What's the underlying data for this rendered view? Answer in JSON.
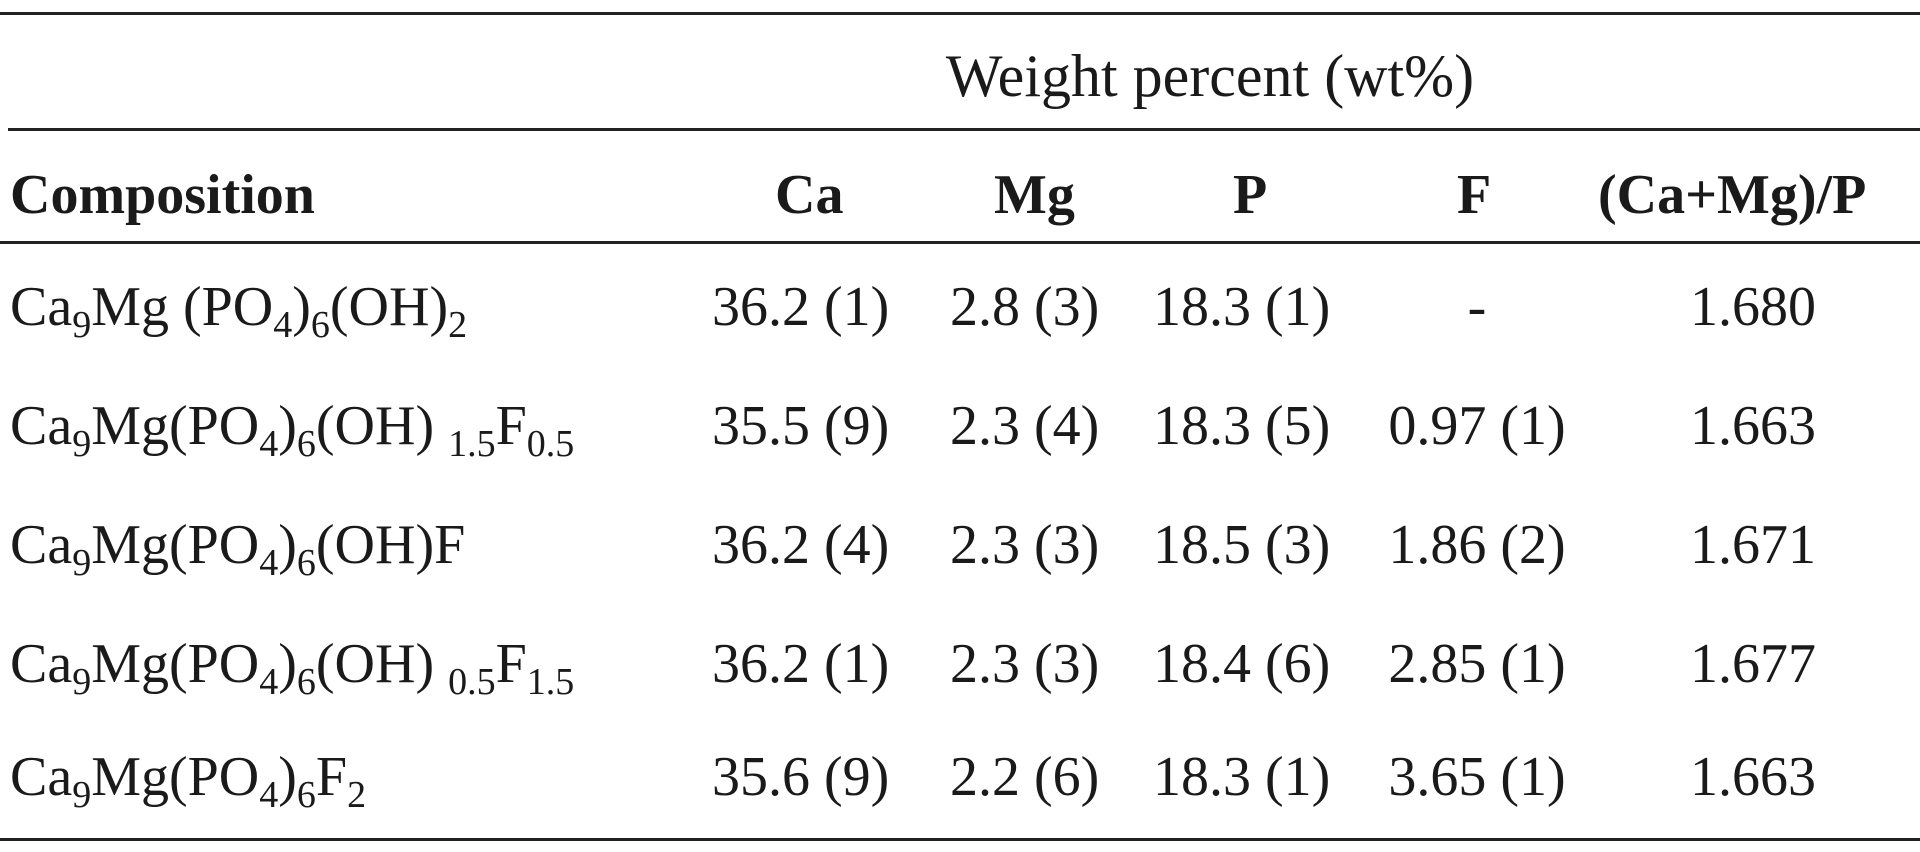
{
  "table": {
    "spanner": "Weight percent (wt%)",
    "headers": {
      "composition": "Composition",
      "ca": "Ca",
      "mg": "Mg",
      "p": "P",
      "f": "F",
      "ratio": "(Ca+Mg)/P"
    },
    "rows": [
      {
        "composition": {
          "a": "Ca",
          "s1": "9",
          "b": "Mg (PO",
          "s2": "4",
          "c": ")",
          "s3": "6",
          "d": "(OH)",
          "s4": "2",
          "e": "",
          "s5": ""
        },
        "ca": "36.2 (1)",
        "mg": "2.8 (3)",
        "p": "18.3 (1)",
        "f": "-",
        "ratio": "1.680"
      },
      {
        "composition": {
          "a": "Ca",
          "s1": "9",
          "b": "Mg(PO",
          "s2": "4",
          "c": ")",
          "s3": "6",
          "d": "(OH) ",
          "s4": "1.5",
          "e": "F",
          "s5": "0.5"
        },
        "ca": "35.5 (9)",
        "mg": "2.3 (4)",
        "p": "18.3 (5)",
        "f": "0.97 (1)",
        "ratio": "1.663"
      },
      {
        "composition": {
          "a": "Ca",
          "s1": "9",
          "b": "Mg(PO",
          "s2": "4",
          "c": ")",
          "s3": "6",
          "d": "(OH)F",
          "s4": "",
          "e": "",
          "s5": ""
        },
        "ca": "36.2 (4)",
        "mg": "2.3 (3)",
        "p": "18.5 (3)",
        "f": "1.86 (2)",
        "ratio": "1.671"
      },
      {
        "composition": {
          "a": "Ca",
          "s1": "9",
          "b": "Mg(PO",
          "s2": "4",
          "c": ")",
          "s3": "6",
          "d": "(OH) ",
          "s4": "0.5",
          "e": "F",
          "s5": "1.5"
        },
        "ca": "36.2 (1)",
        "mg": "2.3 (3)",
        "p": "18.4 (6)",
        "f": "2.85 (1)",
        "ratio": "1.677"
      },
      {
        "composition": {
          "a": "Ca",
          "s1": "9",
          "b": "Mg(PO",
          "s2": "4",
          "c": ")",
          "s3": "6",
          "d": "F",
          "s4": "2",
          "e": "",
          "s5": ""
        },
        "ca": "35.6 (9)",
        "mg": "2.2 (6)",
        "p": "18.3 (1)",
        "f": "3.65 (1)",
        "ratio": "1.663"
      }
    ]
  }
}
